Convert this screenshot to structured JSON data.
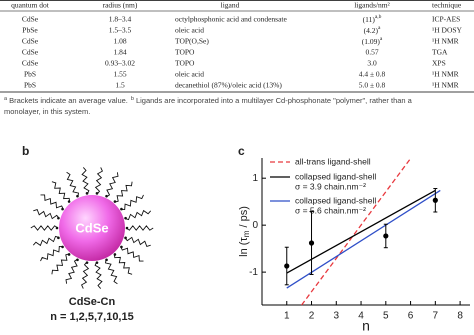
{
  "table": {
    "header": [
      "quantum dot",
      "radius (nm)",
      "ligand",
      "ligands/nm²",
      "technique"
    ],
    "rows": [
      [
        "CdSe",
        "1.8–3.4",
        "octylphosphonic acid and condensate",
        {
          "text": "(11)",
          "sup": "a,b"
        },
        "ICP-AES"
      ],
      [
        "PbSe",
        "1.5–3.5",
        "oleic acid",
        {
          "text": "(4.2)",
          "sup": "a"
        },
        "¹H DOSY"
      ],
      [
        "CdSe",
        "1.08",
        "TOP(O,Se)",
        {
          "text": "(1.09)",
          "sup": "a"
        },
        "¹H NMR"
      ],
      [
        "CdSe",
        "1.84",
        "TOPO",
        "0.57",
        "TGA"
      ],
      [
        "CdSe",
        "0.93–3.02",
        "TOPO",
        "3.0",
        "XPS"
      ],
      [
        "PbS",
        "1.55",
        "oleic acid",
        "4.4 ± 0.8",
        "¹H NMR"
      ],
      [
        "PbS",
        "1.5",
        "decanethiol (87%)/oleic acid (13%)",
        "5.0 ± 0.8",
        "¹H NMR"
      ]
    ]
  },
  "footnotes": [
    {
      "marker": "a",
      "text": "Brackets indicate an average value."
    },
    {
      "marker": "b",
      "text": "Ligands are incorporated into a multilayer Cd-phosphonate \"polymer\", rather than a"
    },
    {
      "text": "monolayer, in this system."
    }
  ],
  "panel_b": {
    "label": "b",
    "particle": "CdSe",
    "caption": "CdSe-Cn",
    "n_values": "n = 1,2,5,7,10,15"
  },
  "chart_data": {
    "type": "line",
    "label": "c",
    "x_label": "n",
    "y_label": {
      "before": "ln (τ",
      "sub": "m",
      "after": " / ps)"
    },
    "xlim": [
      0,
      8.4
    ],
    "xticks": [
      1,
      2,
      3,
      4,
      5,
      6,
      7,
      8
    ],
    "ylim": [
      -1.7,
      1.43
    ],
    "yticks": [
      -1,
      0,
      1
    ],
    "points": {
      "color": "#000000",
      "x": [
        1,
        2,
        5,
        7
      ],
      "values": [
        -0.87,
        -0.38,
        -0.23,
        0.53
      ],
      "errors": [
        0.4,
        0.67,
        0.25,
        0.25
      ]
    },
    "series": [
      {
        "name": "all-trans ligand-shell",
        "color": "#e8393f",
        "dash": true,
        "x": [
          1.6,
          6
        ],
        "values": [
          -1.7,
          1.42
        ]
      },
      {
        "name": "collapsed ligand-shell",
        "note": "σ = 3.9 chain.nm⁻²",
        "color": "#000000",
        "dash": false,
        "x": [
          1,
          7
        ],
        "values": [
          -1.02,
          0.74
        ]
      },
      {
        "name": "collapsed ligand-shell",
        "note": "σ = 5.6 chain.nm⁻²",
        "color": "#2f4fc8",
        "dash": false,
        "x": [
          1,
          7.2
        ],
        "values": [
          -1.34,
          0.74
        ]
      }
    ]
  }
}
